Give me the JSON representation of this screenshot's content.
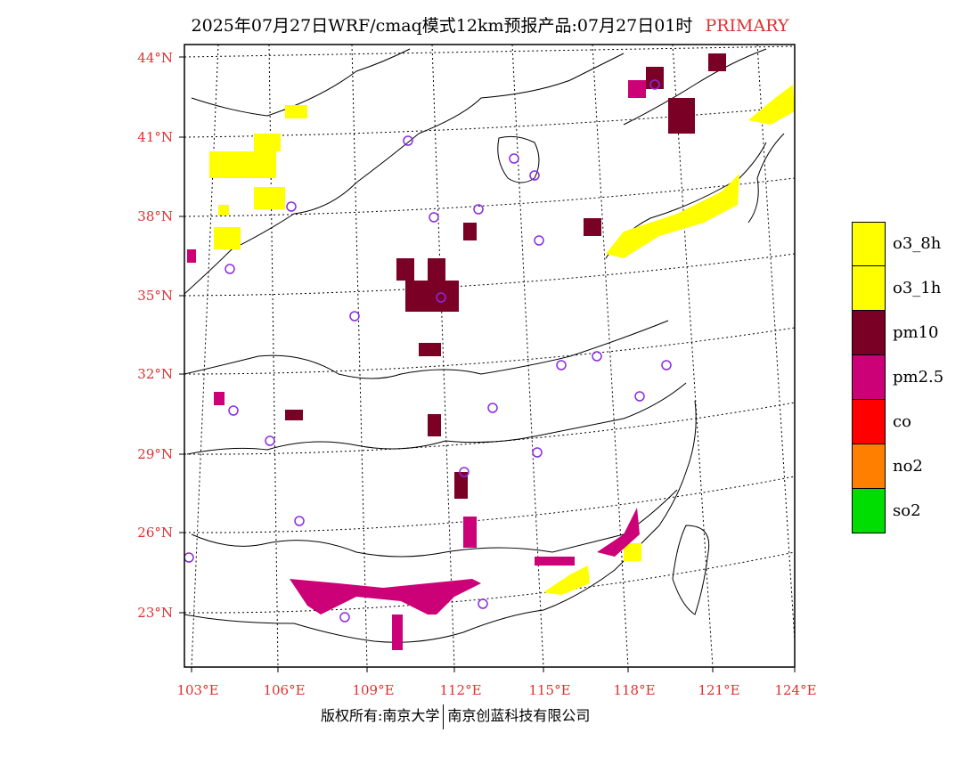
{
  "header": {
    "title": "2025年07月27日WRF/cmaq模式12km预报产品:07月27日01时",
    "product_tag": "PRIMARY"
  },
  "map": {
    "lat_labels": [
      "44°N",
      "41°N",
      "38°N",
      "35°N",
      "32°N",
      "29°N",
      "26°N",
      "23°N"
    ],
    "lon_labels": [
      "103°E",
      "106°E",
      "109°E",
      "112°E",
      "115°E",
      "118°E",
      "121°E",
      "124°E"
    ],
    "colors": {
      "o3_8h": "#ffff00",
      "o3_1h": "#ffff00",
      "pm10": "#7a0026",
      "pm2_5": "#cc0077",
      "co": "#ff0000",
      "no2": "#ff7f00",
      "so2": "#00dd00",
      "station": "#8a2be2",
      "boundary": "#000000"
    },
    "stations_count_label": ""
  },
  "legend": {
    "items": [
      {
        "label": "o3_8h",
        "color": "#ffff00"
      },
      {
        "label": "o3_1h",
        "color": "#ffff00"
      },
      {
        "label": "pm10",
        "color": "#7a0026"
      },
      {
        "label": "pm2.5",
        "color": "#cc0077"
      },
      {
        "label": "co",
        "color": "#ff0000"
      },
      {
        "label": "no2",
        "color": "#ff7f00"
      },
      {
        "label": "so2",
        "color": "#00dd00"
      }
    ]
  },
  "footer": {
    "copyright_left": "版权所有:南京大学",
    "copyright_right": "南京创蓝科技有限公司"
  }
}
